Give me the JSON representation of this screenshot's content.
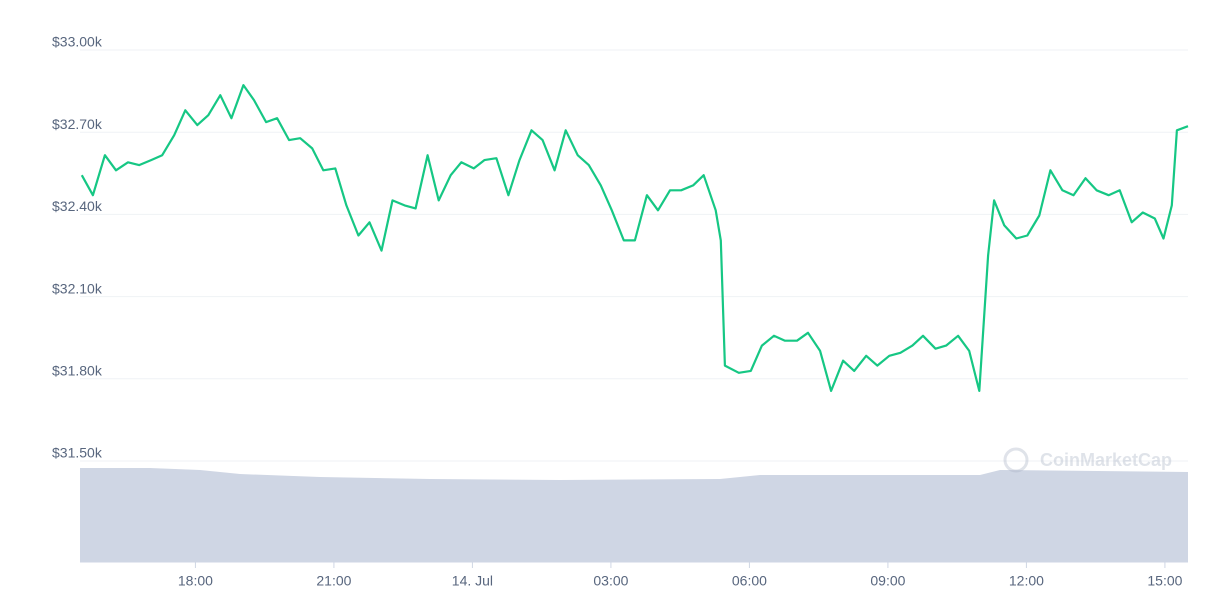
{
  "chart_data": {
    "type": "line",
    "watermark": "CoinMarketCap",
    "color": "#16c784",
    "grid": true,
    "x": [
      15.54,
      15.78,
      16.04,
      16.28,
      16.54,
      16.78,
      17.04,
      17.28,
      17.54,
      17.78,
      18.04,
      18.28,
      18.54,
      18.78,
      19.04,
      19.27,
      19.53,
      19.77,
      20.03,
      20.27,
      20.53,
      20.77,
      21.03,
      21.27,
      21.53,
      21.77,
      22.03,
      22.27,
      22.53,
      22.77,
      23.03,
      23.27,
      23.53,
      23.76,
      24.03,
      24.26,
      24.52,
      24.78,
      25.02,
      25.28,
      25.52,
      25.78,
      26.02,
      26.28,
      26.52,
      26.78,
      27.02,
      27.28,
      27.52,
      27.78,
      28.02,
      28.28,
      28.52,
      28.78,
      29.01,
      29.27,
      29.38,
      29.47,
      29.77,
      30.03,
      30.27,
      30.53,
      30.77,
      31.03,
      31.27,
      31.53,
      31.77,
      32.03,
      32.27,
      32.53,
      32.77,
      33.03,
      33.27,
      33.53,
      33.76,
      34.03,
      34.26,
      34.52,
      34.76,
      34.98,
      35.17,
      35.3,
      35.52,
      35.78,
      36.02,
      36.28,
      36.52,
      36.78,
      37.02,
      37.28,
      37.52,
      37.78,
      38.02,
      38.28,
      38.52,
      38.78,
      38.97,
      39.15,
      39.26,
      39.5
    ],
    "values": [
      32543,
      32470,
      32616,
      32561,
      32590,
      32580,
      32598,
      32616,
      32689,
      32780,
      32726,
      32762,
      32835,
      32751,
      32872,
      32817,
      32737,
      32751,
      32671,
      32678,
      32641,
      32561,
      32568,
      32433,
      32323,
      32371,
      32268,
      32451,
      32433,
      32422,
      32616,
      32451,
      32543,
      32590,
      32568,
      32598,
      32605,
      32470,
      32598,
      32707,
      32671,
      32561,
      32707,
      32616,
      32580,
      32506,
      32415,
      32305,
      32305,
      32470,
      32415,
      32488,
      32488,
      32506,
      32543,
      32415,
      32305,
      31848,
      31822,
      31829,
      31921,
      31957,
      31939,
      31939,
      31968,
      31902,
      31756,
      31866,
      31829,
      31884,
      31848,
      31884,
      31895,
      31921,
      31957,
      31910,
      31921,
      31957,
      31902,
      31756,
      32250,
      32451,
      32360,
      32312,
      32323,
      32396,
      32561,
      32488,
      32470,
      32532,
      32488,
      32470,
      32488,
      32371,
      32407,
      32385,
      32312,
      32433,
      32707,
      32722
    ],
    "xlim": [
      15.5,
      39.5
    ],
    "xticks": [
      {
        "value": 18,
        "label": "18:00"
      },
      {
        "value": 21,
        "label": "21:00"
      },
      {
        "value": 24,
        "label": "14. Jul"
      },
      {
        "value": 27,
        "label": "03:00"
      },
      {
        "value": 30,
        "label": "06:00"
      },
      {
        "value": 33,
        "label": "09:00"
      },
      {
        "value": 36,
        "label": "12:00"
      },
      {
        "value": 39,
        "label": "15:00"
      }
    ],
    "ylim": [
      31500,
      33000
    ],
    "yticks": [
      {
        "value": 31500,
        "label": "$31.50k"
      },
      {
        "value": 31800,
        "label": "$31.80k"
      },
      {
        "value": 32100,
        "label": "$32.10k"
      },
      {
        "value": 32400,
        "label": "$32.40k"
      },
      {
        "value": 32700,
        "label": "$32.70k"
      },
      {
        "value": 33000,
        "label": "$33.00k"
      }
    ]
  }
}
